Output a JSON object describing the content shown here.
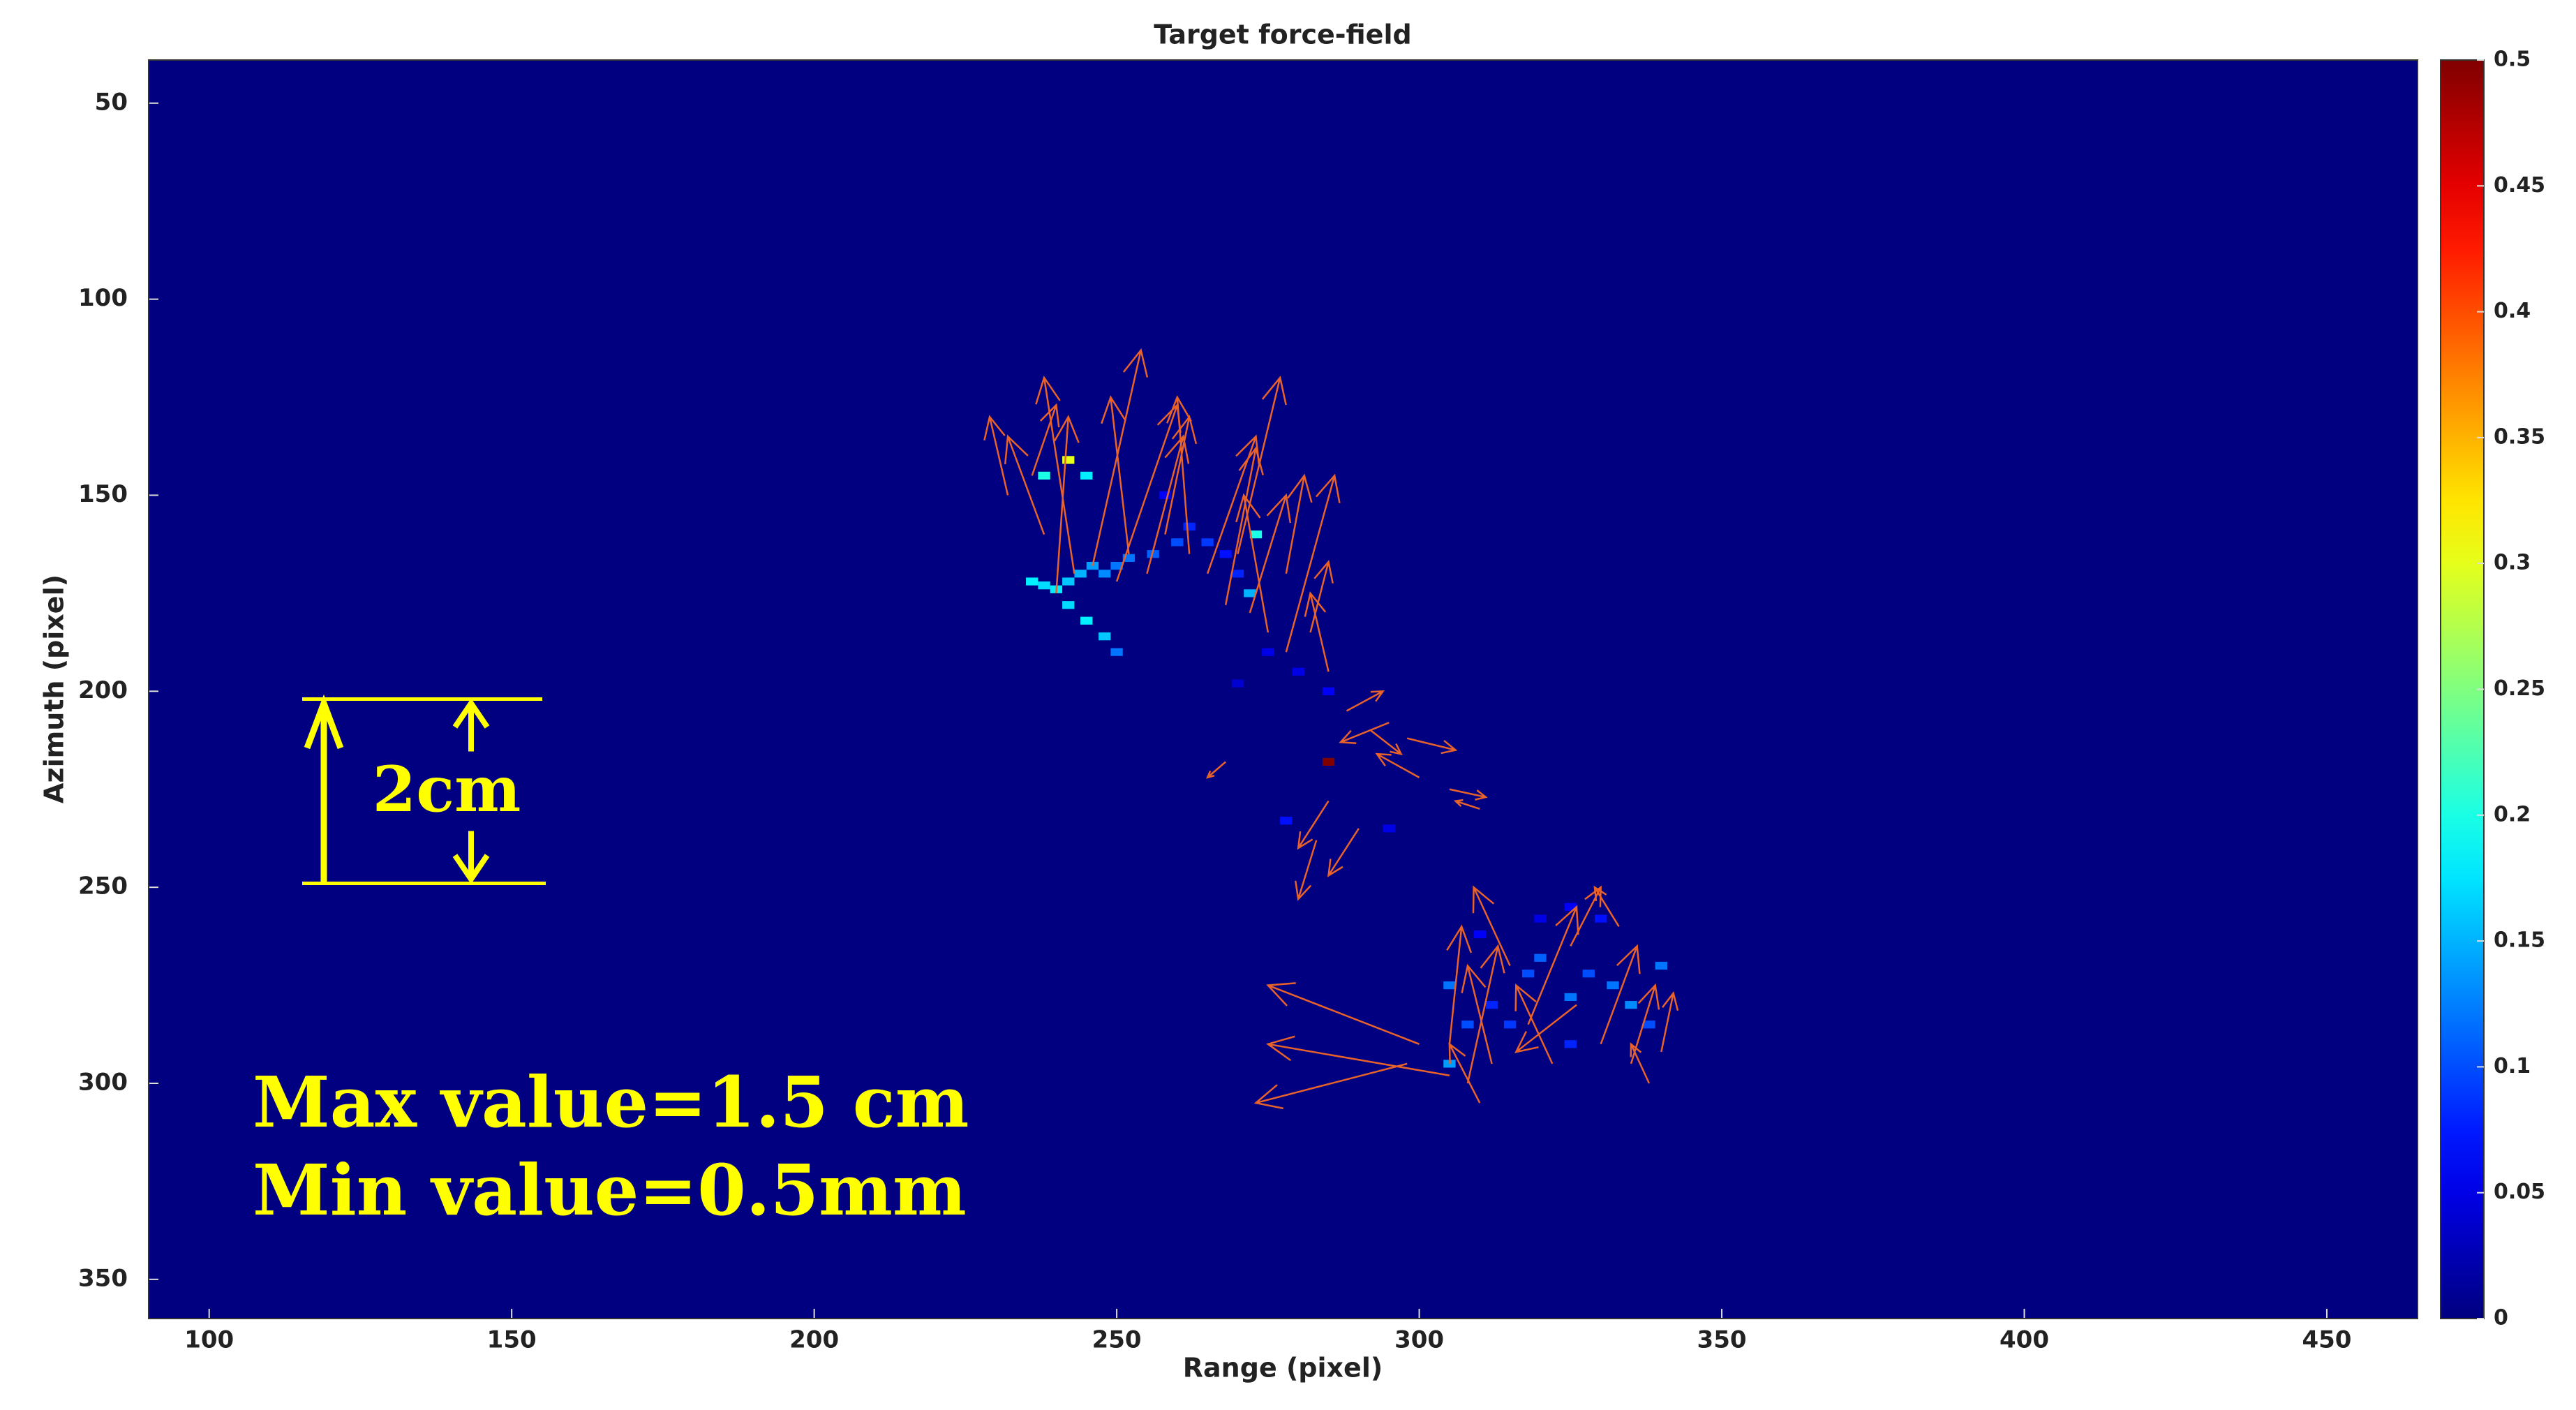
{
  "chart_data": {
    "type": "heatmap",
    "title": "Target force-field",
    "x_label": "Range (pixel)",
    "y_label": "Azimuth (pixel)",
    "xlim": [
      90,
      465
    ],
    "ylim": [
      39,
      360
    ],
    "y_reversed": true,
    "xticks": [
      100,
      150,
      200,
      250,
      300,
      350,
      400,
      450
    ],
    "yticks": [
      50,
      100,
      150,
      200,
      250,
      300,
      350
    ],
    "colormap": "jet",
    "clim": [
      0,
      0.5
    ],
    "colorbar_ticks": [
      0,
      0.05,
      0.1,
      0.15,
      0.2,
      0.25,
      0.3,
      0.35,
      0.4,
      0.45,
      0.5
    ],
    "cells": {
      "x": [
        236,
        238,
        240,
        242,
        244,
        246,
        248,
        250,
        242,
        245,
        248,
        250,
        252,
        256,
        260,
        262,
        265,
        268,
        270,
        273,
        242,
        238,
        245,
        258,
        272,
        275,
        270,
        280,
        285,
        285,
        278,
        295,
        305,
        308,
        305,
        312,
        318,
        320,
        325,
        328,
        332,
        335,
        338,
        340,
        310,
        320,
        330,
        325,
        315,
        325
      ],
      "y": [
        172,
        173,
        174,
        172,
        170,
        168,
        170,
        168,
        178,
        182,
        186,
        190,
        166,
        165,
        162,
        158,
        162,
        165,
        170,
        160,
        141,
        145,
        145,
        150,
        175,
        190,
        198,
        195,
        200,
        218,
        233,
        235,
        275,
        285,
        295,
        280,
        272,
        268,
        278,
        272,
        275,
        280,
        285,
        270,
        262,
        258,
        258,
        255,
        285,
        290
      ],
      "values": [
        0.18,
        0.17,
        0.18,
        0.16,
        0.15,
        0.14,
        0.13,
        0.12,
        0.17,
        0.18,
        0.16,
        0.12,
        0.12,
        0.11,
        0.1,
        0.08,
        0.09,
        0.07,
        0.08,
        0.2,
        0.3,
        0.2,
        0.18,
        0.06,
        0.15,
        0.05,
        0.04,
        0.05,
        0.06,
        0.5,
        0.07,
        0.05,
        0.12,
        0.1,
        0.14,
        0.08,
        0.1,
        0.11,
        0.12,
        0.1,
        0.12,
        0.13,
        0.1,
        0.12,
        0.06,
        0.05,
        0.07,
        0.06,
        0.09,
        0.08
      ]
    },
    "arrows": {
      "color": "#e8622a",
      "x": [
        240,
        243,
        246,
        238,
        250,
        252,
        255,
        258,
        262,
        265,
        268,
        272,
        275,
        278,
        232,
        236,
        270,
        278,
        282,
        285,
        288,
        292,
        295,
        298,
        285,
        283,
        290,
        300,
        305,
        310,
        268,
        305,
        308,
        312,
        318,
        322,
        326,
        330,
        335,
        338,
        300,
        298,
        305,
        315,
        325,
        333,
        340,
        310
      ],
      "y": [
        175,
        170,
        168,
        160,
        172,
        165,
        170,
        160,
        165,
        170,
        178,
        180,
        185,
        190,
        150,
        145,
        165,
        170,
        185,
        195,
        205,
        210,
        208,
        212,
        228,
        238,
        235,
        222,
        225,
        230,
        218,
        290,
        300,
        295,
        285,
        295,
        280,
        290,
        295,
        300,
        290,
        295,
        298,
        270,
        265,
        260,
        292,
        305
      ],
      "u": [
        2,
        -5,
        8,
        -6,
        10,
        -3,
        6,
        4,
        -2,
        8,
        5,
        6,
        -4,
        8,
        -3,
        4,
        7,
        3,
        3,
        -3,
        6,
        5,
        -8,
        8,
        -5,
        -3,
        -5,
        -7,
        6,
        -4,
        -3,
        2,
        5,
        -4,
        8,
        -6,
        -10,
        6,
        4,
        -3,
        -25,
        -25,
        -30,
        -6,
        5,
        -4,
        2,
        -5
      ],
      "v": [
        -45,
        -50,
        -55,
        -25,
        -45,
        -40,
        -35,
        -30,
        -40,
        -35,
        -40,
        -30,
        -35,
        -45,
        -20,
        -18,
        -45,
        -25,
        -18,
        -20,
        -5,
        6,
        5,
        3,
        12,
        15,
        12,
        -6,
        2,
        -2,
        4,
        -30,
        -35,
        -25,
        -30,
        -20,
        12,
        -25,
        -20,
        -10,
        -15,
        10,
        -8,
        -20,
        -15,
        -10,
        -15,
        -15
      ]
    },
    "scale_bar": {
      "label": "2cm",
      "y": [
        202,
        249
      ]
    },
    "annotations": [
      "Max value=1.5 cm",
      "Min value=0.5mm"
    ]
  }
}
